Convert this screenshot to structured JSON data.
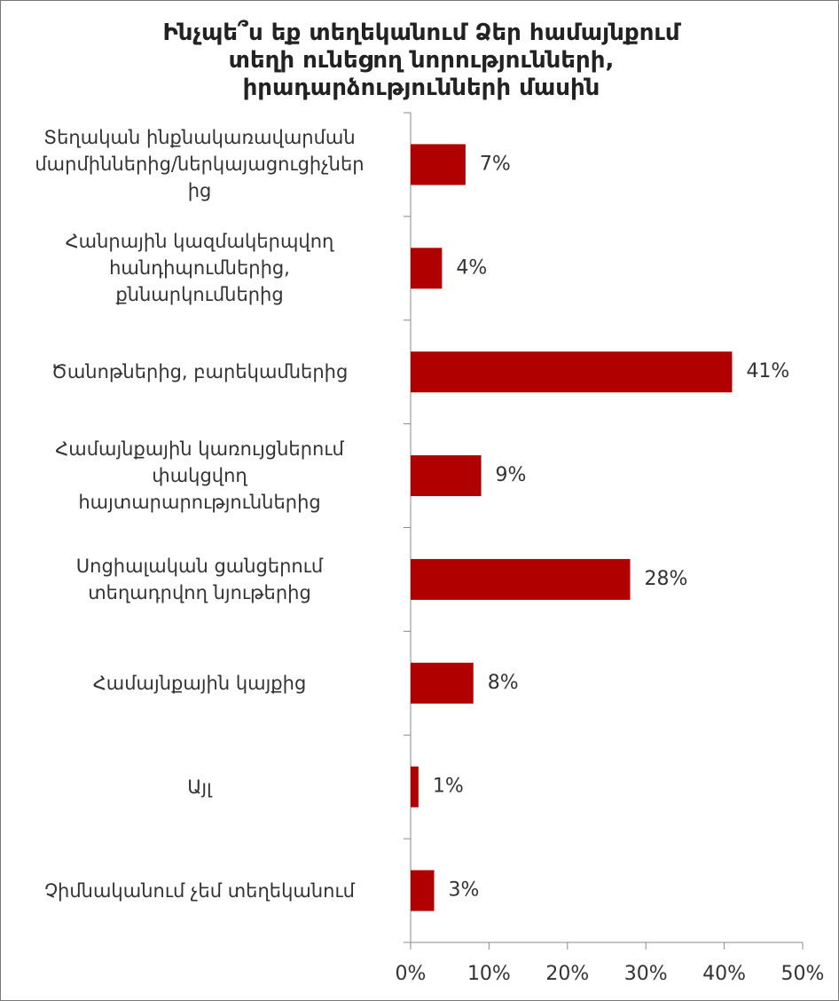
{
  "chart_data": {
    "type": "bar",
    "orientation": "horizontal",
    "title": "Ինչպե՞ս եք տեղեկանում Ձեր համայնքում\nտեղի ունեցող նորությունների,\nիրադարձությունների մասին",
    "categories": [
      "Տեղական ինքնակառավարման\nմարմիններից/ներկայացուցիչներ\nից",
      "Հանրային կազմակերպվող\nհանդիպումներից,\nքննարկումներից",
      "Ծանոթներից, բարեկամներից",
      "Համայնքային կառույցներում\nփակցվող\nհայտարարություններից",
      "Սոցիալական ցանցերում\nտեղադրվող նյութերից",
      "Համայնքային կայքից",
      "Այլ",
      "Չիմնականում չեմ տեղեկանում"
    ],
    "values": [
      7,
      4,
      41,
      9,
      28,
      8,
      1,
      3
    ],
    "value_labels": [
      "7%",
      "4%",
      "41%",
      "9%",
      "28%",
      "8%",
      "1%",
      "3%"
    ],
    "color": "#b00000",
    "xlim": [
      0,
      50
    ],
    "xticks": [
      {
        "value": 0,
        "label": "0%"
      },
      {
        "value": 10,
        "label": "10%"
      },
      {
        "value": 20,
        "label": "20%"
      },
      {
        "value": 30,
        "label": "30%"
      },
      {
        "value": 40,
        "label": "40%"
      },
      {
        "value": 50,
        "label": "50%"
      }
    ]
  }
}
